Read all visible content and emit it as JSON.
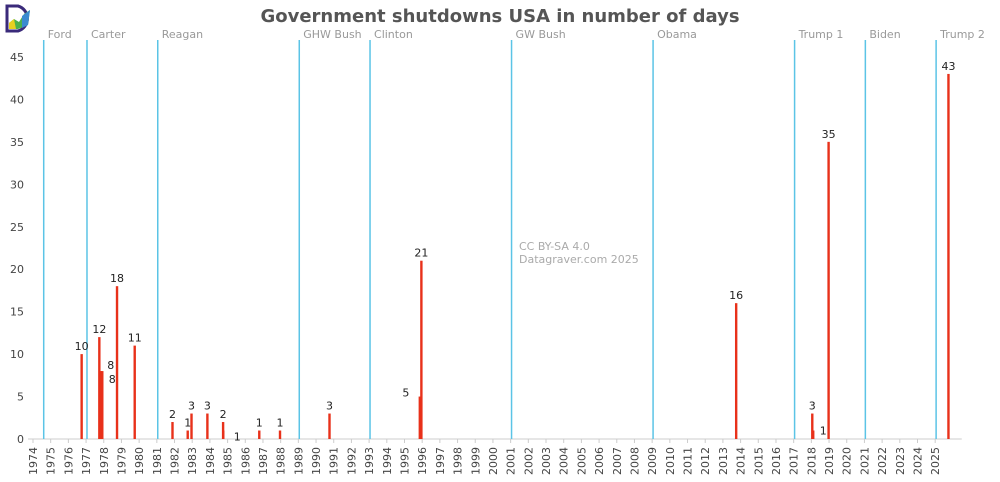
{
  "chart_data": {
    "type": "bar",
    "title": "Government shutdowns USA in number of days",
    "xlabel": "",
    "ylabel": "",
    "xlim": [
      1974,
      2026.5
    ],
    "ylim": [
      0,
      47
    ],
    "yticks": [
      0,
      5,
      10,
      15,
      20,
      25,
      30,
      35,
      40,
      45
    ],
    "xticks": [
      "1974",
      "1975",
      "1976",
      "1977",
      "1978",
      "1979",
      "1980",
      "1981",
      "1982",
      "1983",
      "1984",
      "1985",
      "1986",
      "1987",
      "1988",
      "1989",
      "1990",
      "1991",
      "1992",
      "1993",
      "1994",
      "1995",
      "1996",
      "1997",
      "1998",
      "1999",
      "2000",
      "2001",
      "2002",
      "2003",
      "2004",
      "2005",
      "2006",
      "2007",
      "2008",
      "2009",
      "2010",
      "2011",
      "2012",
      "2013",
      "2014",
      "2015",
      "2016",
      "2017",
      "2018",
      "2019",
      "2020",
      "2021",
      "2022",
      "2023",
      "2024",
      "2025"
    ],
    "grid": false,
    "bar_color": "#e8311a",
    "president_line_color": "#5bc4e6",
    "bars": [
      {
        "date": "1976-10-01",
        "days": 10
      },
      {
        "date": "1977-10-01",
        "days": 12
      },
      {
        "date": "1977-11-01",
        "days": 8
      },
      {
        "date": "1977-12-01",
        "days": 8
      },
      {
        "date": "1978-10-01",
        "days": 18
      },
      {
        "date": "1979-10-01",
        "days": 11
      },
      {
        "date": "1981-11-20",
        "days": 2
      },
      {
        "date": "1982-09-30",
        "days": 1
      },
      {
        "date": "1982-12-17",
        "days": 3
      },
      {
        "date": "1983-11-10",
        "days": 3
      },
      {
        "date": "1984-09-30",
        "days": 2
      },
      {
        "date": "1984-10-03",
        "days": 1
      },
      {
        "date": "1986-10-16",
        "days": 1
      },
      {
        "date": "1987-12-18",
        "days": 1
      },
      {
        "date": "1990-10-05",
        "days": 3
      },
      {
        "date": "1995-11-13",
        "days": 5
      },
      {
        "date": "1995-12-15",
        "days": 21
      },
      {
        "date": "2013-10-01",
        "days": 16
      },
      {
        "date": "2018-01-20",
        "days": 3
      },
      {
        "date": "2018-02-09",
        "days": 1
      },
      {
        "date": "2018-12-22",
        "days": 35
      },
      {
        "date": "2025-10-01",
        "days": 43
      }
    ],
    "presidents": [
      {
        "name": "Ford",
        "start": "1974-08-09"
      },
      {
        "name": "Carter",
        "start": "1977-01-20"
      },
      {
        "name": "Reagan",
        "start": "1981-01-20"
      },
      {
        "name": "GHW Bush",
        "start": "1989-01-20"
      },
      {
        "name": "Clinton",
        "start": "1993-01-20"
      },
      {
        "name": "GW Bush",
        "start": "2001-01-20"
      },
      {
        "name": "Obama",
        "start": "2009-01-20"
      },
      {
        "name": "Trump 1",
        "start": "2017-01-20"
      },
      {
        "name": "Biden",
        "start": "2021-01-20"
      },
      {
        "name": "Trump 2",
        "start": "2025-01-20"
      }
    ],
    "annotations": [
      "CC BY-SA 4.0",
      "Datagraver.com 2025"
    ]
  }
}
